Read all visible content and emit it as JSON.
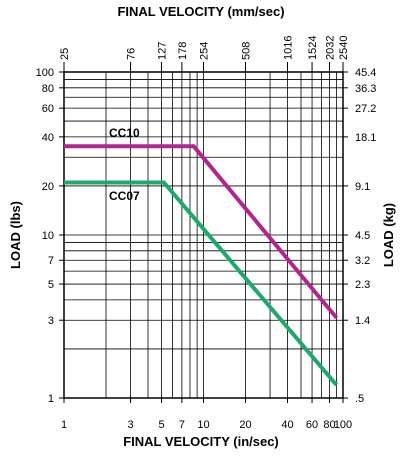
{
  "chart_data": {
    "type": "line",
    "xscale": "log",
    "yscale": "log",
    "grid": true,
    "xlim": [
      1,
      100
    ],
    "ylim": [
      1,
      100
    ],
    "top_axis": {
      "title": "FINAL VELOCITY (mm/sec)",
      "ticks": [
        {
          "label": "25",
          "value": 1
        },
        {
          "label": "76",
          "value": 3
        },
        {
          "label": "127",
          "value": 5
        },
        {
          "label": "178",
          "value": 7
        },
        {
          "label": "254",
          "value": 10
        },
        {
          "label": "508",
          "value": 20
        },
        {
          "label": "1016",
          "value": 40
        },
        {
          "label": "1524",
          "value": 60
        },
        {
          "label": "2032",
          "value": 80
        },
        {
          "label": "2540",
          "value": 100
        }
      ]
    },
    "bottom_axis": {
      "title": "FINAL VELOCITY (in/sec)",
      "ticks": [
        {
          "label": "1",
          "value": 1
        },
        {
          "label": "3",
          "value": 3
        },
        {
          "label": "5",
          "value": 5
        },
        {
          "label": "7",
          "value": 7
        },
        {
          "label": "10",
          "value": 10
        },
        {
          "label": "20",
          "value": 20
        },
        {
          "label": "40",
          "value": 40
        },
        {
          "label": "60",
          "value": 60
        },
        {
          "label": "80",
          "value": 80
        },
        {
          "label": "100",
          "value": 100
        }
      ]
    },
    "left_axis": {
      "title": "LOAD (lbs)",
      "ticks": [
        {
          "label": "100",
          "value": 100
        },
        {
          "label": "80",
          "value": 80
        },
        {
          "label": "60",
          "value": 60
        },
        {
          "label": "40",
          "value": 40
        },
        {
          "label": "20",
          "value": 20
        },
        {
          "label": "10",
          "value": 10
        },
        {
          "label": "7",
          "value": 7
        },
        {
          "label": "5",
          "value": 5
        },
        {
          "label": "3",
          "value": 3
        },
        {
          "label": "1",
          "value": 1
        }
      ]
    },
    "right_axis": {
      "title": "LOAD (kg)",
      "ticks": [
        {
          "label": "45.4",
          "value": 100
        },
        {
          "label": "36.3",
          "value": 80
        },
        {
          "label": "27.2",
          "value": 60
        },
        {
          "label": "18.1",
          "value": 40
        },
        {
          "label": "9.1",
          "value": 20
        },
        {
          "label": "4.5",
          "value": 10
        },
        {
          "label": "3.2",
          "value": 7
        },
        {
          "label": "2.3",
          "value": 5
        },
        {
          "label": "1.4",
          "value": 3
        },
        {
          "label": ".5",
          "value": 1
        }
      ]
    },
    "gridlines": {
      "x": [
        1,
        2,
        3,
        4,
        5,
        6,
        7,
        8,
        9,
        10,
        20,
        30,
        40,
        50,
        60,
        70,
        80,
        90,
        100
      ],
      "y": [
        1,
        2,
        3,
        4,
        5,
        6,
        7,
        8,
        9,
        10,
        20,
        30,
        40,
        50,
        60,
        70,
        80,
        90,
        100
      ]
    },
    "series": [
      {
        "name": "CC10",
        "color": "#b0258f",
        "points": [
          [
            1,
            35
          ],
          [
            8.5,
            35
          ],
          [
            90,
            3.1
          ]
        ]
      },
      {
        "name": "CC07",
        "color": "#1fa86b",
        "points": [
          [
            1,
            21
          ],
          [
            5.2,
            21
          ],
          [
            90,
            1.2
          ]
        ]
      }
    ]
  }
}
